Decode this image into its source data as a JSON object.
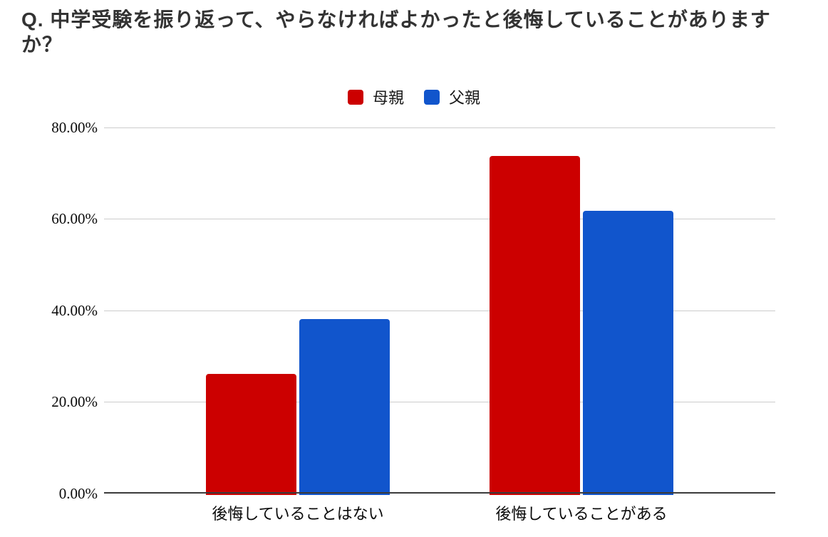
{
  "chart_data": {
    "type": "bar",
    "title": "Q. 中学受験を振り返って、やらなければよかったと後悔していることがありますか？",
    "categories": [
      "後悔していることはない",
      "後悔していることがある"
    ],
    "series": [
      {
        "name": "母親",
        "color": "#cc0000",
        "values": [
          26.2,
          73.8
        ]
      },
      {
        "name": "父親",
        "color": "#1155cc",
        "values": [
          38.2,
          61.8
        ]
      }
    ],
    "unit": "%",
    "ylim": [
      0,
      80
    ],
    "yticks": [
      0,
      20,
      40,
      60,
      80
    ],
    "ytick_labels": [
      "0.00%",
      "20.00%",
      "40.00%",
      "60.00%",
      "80.00%"
    ],
    "grid": true,
    "legend_position": "top",
    "colors": {
      "gridline": "#cccccc",
      "axis_line": "#3b3b3b",
      "title_text": "#333333",
      "label_text": "#0a0a0a"
    }
  }
}
